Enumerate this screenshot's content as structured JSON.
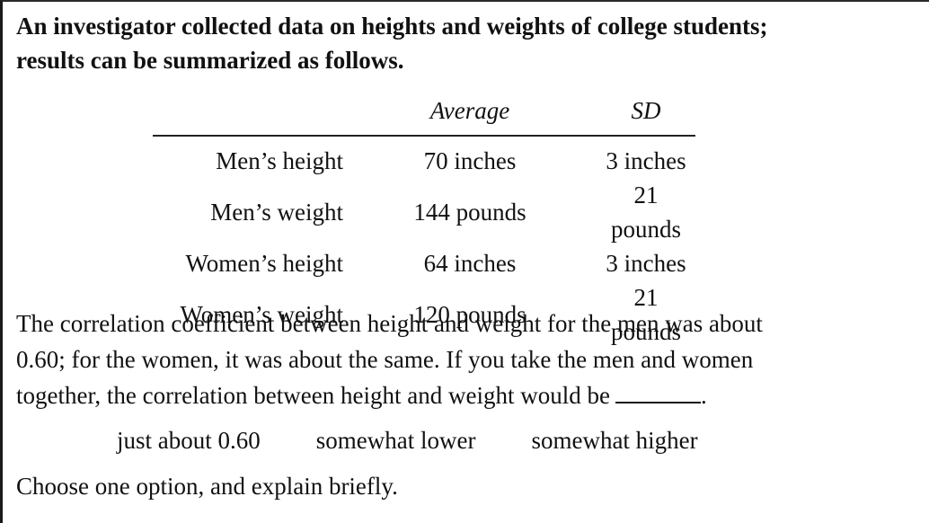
{
  "intro": {
    "line1": "An investigator collected data on heights and weights of college students;",
    "line2": "results can be summarized as follows."
  },
  "table": {
    "headers": [
      "",
      "Average",
      "SD"
    ],
    "rows": [
      {
        "label": "Men’s height",
        "average": "70 inches",
        "sd": "3 inches"
      },
      {
        "label": "Men’s weight",
        "average": "144 pounds",
        "sd": "21 pounds"
      },
      {
        "label": "Women’s height",
        "average": "64 inches",
        "sd": "3 inches"
      },
      {
        "label": "Women’s weight",
        "average": "120 pounds",
        "sd": "21 pounds"
      }
    ]
  },
  "question": {
    "line1": "The correlation coefficient between height and weight for the men was about",
    "line2": "0.60; for the women, it was about the same. If you take the men and women",
    "line3": "together, the correlation between height and weight would be",
    "end_punct": "."
  },
  "options": [
    "just about 0.60",
    "somewhat lower",
    "somewhat higher"
  ],
  "instruction": "Choose one option, and explain briefly."
}
